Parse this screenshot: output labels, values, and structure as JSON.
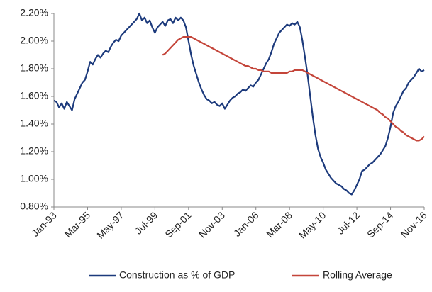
{
  "chart_data": {
    "type": "line",
    "categories": [
      "Jan-93",
      null,
      null,
      null,
      null,
      null,
      null,
      null,
      null,
      null,
      null,
      null,
      null,
      "Mar-95",
      null,
      null,
      null,
      null,
      null,
      null,
      null,
      null,
      null,
      null,
      null,
      null,
      "May-97",
      null,
      null,
      null,
      null,
      null,
      null,
      null,
      null,
      null,
      null,
      null,
      null,
      "Jul-99",
      null,
      null,
      null,
      null,
      null,
      null,
      null,
      null,
      null,
      null,
      null,
      null,
      "Sep-01",
      null,
      null,
      null,
      null,
      null,
      null,
      null,
      null,
      null,
      null,
      null,
      null,
      "Nov-03",
      null,
      null,
      null,
      null,
      null,
      null,
      null,
      null,
      null,
      null,
      null,
      null,
      "Jan-06",
      null,
      null,
      null,
      null,
      null,
      null,
      null,
      null,
      null,
      null,
      null,
      null,
      "Mar-08",
      null,
      null,
      null,
      null,
      null,
      null,
      null,
      null,
      null,
      null,
      null,
      null,
      "May-10",
      null,
      null,
      null,
      null,
      null,
      null,
      null,
      null,
      null,
      null,
      null,
      null,
      "Jul-12",
      null,
      null,
      null,
      null,
      null,
      null,
      null,
      null,
      null,
      null,
      null,
      null,
      "Sep-14",
      null,
      null,
      null,
      null,
      null,
      null,
      null,
      null,
      null,
      null,
      null,
      null,
      "Nov-16"
    ],
    "series": [
      {
        "name": "Construction as % of GDP",
        "color": "#1c3a7c",
        "values": [
          1.57,
          1.56,
          1.52,
          1.55,
          1.51,
          1.56,
          1.53,
          1.5,
          1.58,
          1.62,
          1.66,
          1.7,
          1.72,
          1.78,
          1.85,
          1.83,
          1.87,
          1.9,
          1.88,
          1.91,
          1.93,
          1.92,
          1.96,
          1.99,
          2.01,
          2.0,
          2.04,
          2.06,
          2.08,
          2.1,
          2.12,
          2.14,
          2.16,
          2.2,
          2.15,
          2.17,
          2.13,
          2.15,
          2.1,
          2.06,
          2.1,
          2.12,
          2.14,
          2.11,
          2.15,
          2.16,
          2.13,
          2.17,
          2.15,
          2.17,
          2.15,
          2.1,
          2.0,
          1.9,
          1.82,
          1.76,
          1.7,
          1.65,
          1.61,
          1.58,
          1.57,
          1.55,
          1.56,
          1.54,
          1.53,
          1.55,
          1.51,
          1.54,
          1.57,
          1.59,
          1.6,
          1.62,
          1.63,
          1.65,
          1.64,
          1.66,
          1.68,
          1.67,
          1.7,
          1.72,
          1.76,
          1.8,
          1.84,
          1.87,
          1.92,
          1.98,
          2.02,
          2.06,
          2.08,
          2.1,
          2.12,
          2.11,
          2.13,
          2.12,
          2.14,
          2.1,
          2.0,
          1.88,
          1.75,
          1.6,
          1.45,
          1.32,
          1.22,
          1.16,
          1.12,
          1.07,
          1.04,
          1.01,
          0.99,
          0.97,
          0.96,
          0.95,
          0.93,
          0.92,
          0.9,
          0.89,
          0.92,
          0.96,
          1.0,
          1.06,
          1.07,
          1.09,
          1.11,
          1.12,
          1.14,
          1.16,
          1.18,
          1.21,
          1.24,
          1.3,
          1.38,
          1.48,
          1.53,
          1.56,
          1.6,
          1.64,
          1.66,
          1.7,
          1.72,
          1.74,
          1.77,
          1.8,
          1.78,
          1.79
        ]
      },
      {
        "name": "Rolling Average",
        "color": "#c4453a",
        "values": [
          null,
          null,
          null,
          null,
          null,
          null,
          null,
          null,
          null,
          null,
          null,
          null,
          null,
          null,
          null,
          null,
          null,
          null,
          null,
          null,
          null,
          null,
          null,
          null,
          null,
          null,
          null,
          null,
          null,
          null,
          null,
          null,
          null,
          null,
          null,
          null,
          null,
          null,
          null,
          null,
          null,
          null,
          1.9,
          1.91,
          1.93,
          1.95,
          1.97,
          1.99,
          2.01,
          2.02,
          2.03,
          2.03,
          2.03,
          2.03,
          2.02,
          2.01,
          2.0,
          1.99,
          1.98,
          1.97,
          1.96,
          1.95,
          1.94,
          1.93,
          1.92,
          1.91,
          1.9,
          1.89,
          1.88,
          1.87,
          1.86,
          1.85,
          1.84,
          1.83,
          1.82,
          1.82,
          1.81,
          1.8,
          1.8,
          1.79,
          1.79,
          1.78,
          1.78,
          1.78,
          1.77,
          1.77,
          1.77,
          1.77,
          1.77,
          1.77,
          1.77,
          1.78,
          1.78,
          1.79,
          1.79,
          1.79,
          1.79,
          1.78,
          1.77,
          1.76,
          1.75,
          1.74,
          1.73,
          1.72,
          1.71,
          1.7,
          1.69,
          1.68,
          1.67,
          1.66,
          1.65,
          1.64,
          1.63,
          1.62,
          1.61,
          1.6,
          1.59,
          1.58,
          1.57,
          1.56,
          1.55,
          1.54,
          1.53,
          1.52,
          1.51,
          1.5,
          1.48,
          1.47,
          1.45,
          1.44,
          1.42,
          1.4,
          1.38,
          1.37,
          1.35,
          1.34,
          1.32,
          1.31,
          1.3,
          1.29,
          1.28,
          1.28,
          1.29,
          1.31
        ]
      }
    ],
    "ylim": [
      0.8,
      2.2
    ],
    "yticks": [
      {
        "value": 0.8,
        "label": "0.80%"
      },
      {
        "value": 1.0,
        "label": "1.00%"
      },
      {
        "value": 1.2,
        "label": "1.20%"
      },
      {
        "value": 1.4,
        "label": "1.40%"
      },
      {
        "value": 1.6,
        "label": "1.60%"
      },
      {
        "value": 1.8,
        "label": "1.80%"
      },
      {
        "value": 2.0,
        "label": "2.00%"
      },
      {
        "value": 2.2,
        "label": "2.20%"
      }
    ],
    "grid": false,
    "legend": "bottom"
  }
}
